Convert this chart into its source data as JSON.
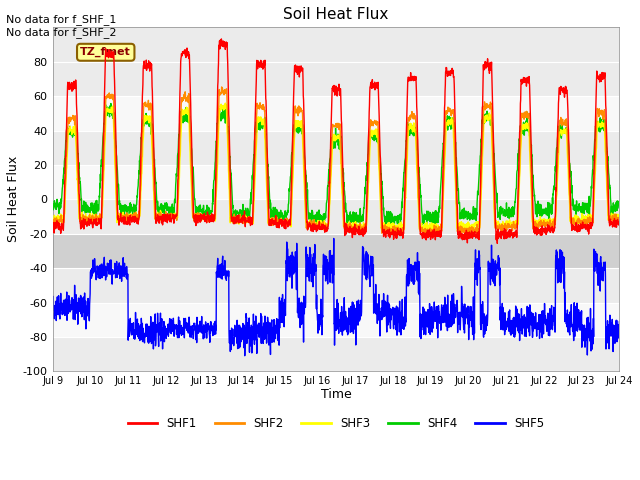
{
  "title": "Soil Heat Flux",
  "xlabel": "Time",
  "ylabel": "Soil Heat Flux",
  "ylim": [
    -100,
    100
  ],
  "yticks": [
    -100,
    -80,
    -60,
    -40,
    -20,
    0,
    20,
    40,
    60,
    80
  ],
  "colors": {
    "SHF1": "#ff0000",
    "SHF2": "#ff8c00",
    "SHF3": "#ffff00",
    "SHF4": "#00cc00",
    "SHF5": "#0000ff"
  },
  "plot_bg_upper": "#e8e8e8",
  "plot_bg_lower": "#d8d8d8",
  "band_color": "#cccccc",
  "annotation_text": "No data for f_SHF_1\nNo data for f_SHF_2",
  "tz_label": "TZ_fmet",
  "n_days": 15,
  "x_tick_labels": [
    "Jul 9",
    "Jul 10",
    "Jul 11",
    "Jul 12",
    "Jul 13",
    "Jul 14",
    "Jul 15",
    "Jul 16",
    "Jul 17",
    "Jul 18",
    "Jul 19",
    "Jul 20",
    "Jul 21",
    "Jul 22",
    "Jul 23",
    "Jul 24"
  ],
  "linewidth": 1.0,
  "legend_entries": [
    "SHF1",
    "SHF2",
    "SHF3",
    "SHF4",
    "SHF5"
  ]
}
